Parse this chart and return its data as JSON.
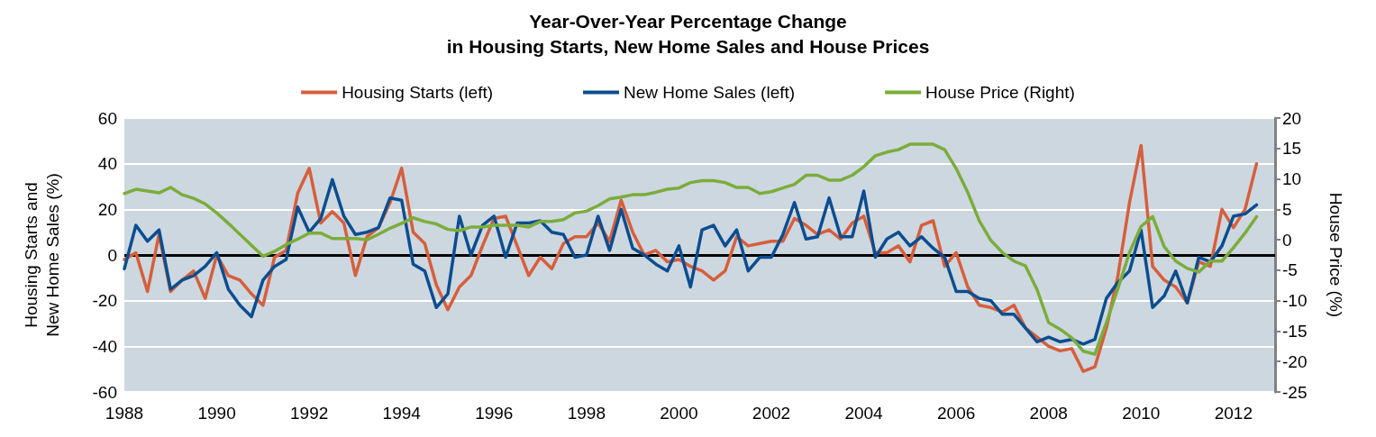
{
  "chart_data": {
    "type": "line",
    "title": "Year-Over-Year Percentage Change\nin Housing Starts, New Home Sales and House Prices",
    "ylabel": "Housing Starts and\nNew Home Sales (%)",
    "y2label": "House Price (%)",
    "x": [
      1988,
      1988.25,
      1988.5,
      1988.75,
      1989,
      1989.25,
      1989.5,
      1989.75,
      1990,
      1990.25,
      1990.5,
      1990.75,
      1991,
      1991.25,
      1991.5,
      1991.75,
      1992,
      1992.25,
      1992.5,
      1992.75,
      1993,
      1993.25,
      1993.5,
      1993.75,
      1994,
      1994.25,
      1994.5,
      1994.75,
      1995,
      1995.25,
      1995.5,
      1995.75,
      1996,
      1996.25,
      1996.5,
      1996.75,
      1997,
      1997.25,
      1997.5,
      1997.75,
      1998,
      1998.25,
      1998.5,
      1998.75,
      1999,
      1999.25,
      1999.5,
      1999.75,
      2000,
      2000.25,
      2000.5,
      2000.75,
      2001,
      2001.25,
      2001.5,
      2001.75,
      2002,
      2002.25,
      2002.5,
      2002.75,
      2003,
      2003.25,
      2003.5,
      2003.75,
      2004,
      2004.25,
      2004.5,
      2004.75,
      2005,
      2005.25,
      2005.5,
      2005.75,
      2006,
      2006.25,
      2006.5,
      2006.75,
      2007,
      2007.25,
      2007.5,
      2007.75,
      2008,
      2008.25,
      2008.5,
      2008.75,
      2009,
      2009.25,
      2009.5,
      2009.75,
      2010,
      2010.25,
      2010.5,
      2010.75,
      2011,
      2011.25,
      2011.5,
      2011.75,
      2012,
      2012.25,
      2012.5
    ],
    "series": [
      {
        "name": "Housing Starts (left)",
        "color": "#d65f3c",
        "values": [
          -2,
          1,
          -16,
          9,
          -16,
          -11,
          -7,
          -19,
          0,
          -9,
          -11,
          -17,
          -22,
          -1,
          2,
          27,
          38,
          14,
          19,
          14,
          -9,
          8,
          12,
          23,
          38,
          10,
          5,
          -13,
          -24,
          -14,
          -9,
          4,
          16,
          17,
          4,
          -9,
          -1,
          -6,
          5,
          8,
          8,
          14,
          6,
          24,
          10,
          0,
          2,
          -3,
          -2,
          -5,
          -7,
          -11,
          -7,
          8,
          4,
          5,
          6,
          6,
          16,
          13,
          9,
          11,
          7,
          14,
          17,
          1,
          1,
          4,
          -3,
          13,
          15,
          -5,
          1,
          -14,
          -22,
          -23,
          -25,
          -22,
          -32,
          -36,
          -40,
          -42,
          -41,
          -51,
          -49,
          -32,
          -9,
          23,
          48,
          -5,
          -11,
          -14,
          -21,
          -3,
          -5,
          20,
          12,
          20,
          40
        ]
      },
      {
        "name": "New Home Sales (left)",
        "color": "#0b4d8f",
        "values": [
          -6,
          13,
          6,
          11,
          -15,
          -11,
          -9,
          -5,
          1,
          -15,
          -22,
          -27,
          -11,
          -5,
          -2,
          21,
          10,
          16,
          33,
          17,
          9,
          10,
          12,
          25,
          24,
          -4,
          -7,
          -23,
          -17,
          17,
          0,
          13,
          17,
          -1,
          14,
          14,
          15,
          10,
          9,
          -1,
          0,
          17,
          2,
          20,
          3,
          0,
          -4,
          -7,
          4,
          -14,
          11,
          13,
          4,
          11,
          -7,
          -1,
          -1,
          9,
          23,
          7,
          8,
          25,
          8,
          8,
          28,
          -1,
          7,
          10,
          4,
          8,
          3,
          -1,
          -16,
          -16,
          -19,
          -20,
          -26,
          -26,
          -32,
          -38,
          -36,
          -38,
          -37,
          -39,
          -37,
          -19,
          -12,
          -7,
          11,
          -23,
          -18,
          -7,
          -21,
          -1,
          -3,
          4,
          17,
          18,
          22
        ]
      },
      {
        "name": "House Price (Right)",
        "color": "#7aad3a",
        "axis": "y2",
        "values": [
          7.6,
          8.3,
          8.0,
          7.7,
          8.6,
          7.4,
          6.8,
          5.9,
          4.4,
          2.7,
          0.9,
          -0.9,
          -2.7,
          -1.9,
          -0.8,
          0.1,
          1.1,
          1.1,
          0.2,
          0.2,
          0.2,
          0,
          0.9,
          1.9,
          2.7,
          3.6,
          3.0,
          2.6,
          1.7,
          1.5,
          2.1,
          2.1,
          2.4,
          2.4,
          2.4,
          2.1,
          3.0,
          3.0,
          3.3,
          4.4,
          4.7,
          5.6,
          6.7,
          7.0,
          7.4,
          7.4,
          7.8,
          8.3,
          8.5,
          9.4,
          9.7,
          9.7,
          9.4,
          8.6,
          8.6,
          7.6,
          7.9,
          8.5,
          9.1,
          10.6,
          10.6,
          9.8,
          9.8,
          10.6,
          12.0,
          13.8,
          14.4,
          14.8,
          15.7,
          15.7,
          15.7,
          14.8,
          11.7,
          7.8,
          3.1,
          -0.1,
          -2.1,
          -3.5,
          -4.3,
          -8.2,
          -13.6,
          -14.7,
          -16.1,
          -18.3,
          -18.8,
          -13.6,
          -8.0,
          -2.1,
          2.2,
          3.8,
          -1.1,
          -3.5,
          -4.7,
          -5.3,
          -3.5,
          -3.5,
          -1.3,
          1.1,
          3.8
        ]
      }
    ],
    "xlim": [
      1988,
      2012.9
    ],
    "xticks": [
      1988,
      1990,
      1992,
      1994,
      1996,
      1998,
      2000,
      2002,
      2004,
      2006,
      2008,
      2010,
      2012
    ],
    "ylim": [
      -60,
      60
    ],
    "yticks": [
      -60,
      -40,
      -20,
      0,
      20,
      40,
      60
    ],
    "y2lim": [
      -25,
      20
    ],
    "y2ticks": [
      -25,
      -20,
      -15,
      -10,
      -5,
      0,
      5,
      10,
      15,
      20
    ],
    "ref_lines": [
      {
        "axis": "y",
        "value": 0,
        "color": "#000000"
      }
    ],
    "grid": "y",
    "legend": "top",
    "marker": "none",
    "line_style": "solid"
  }
}
